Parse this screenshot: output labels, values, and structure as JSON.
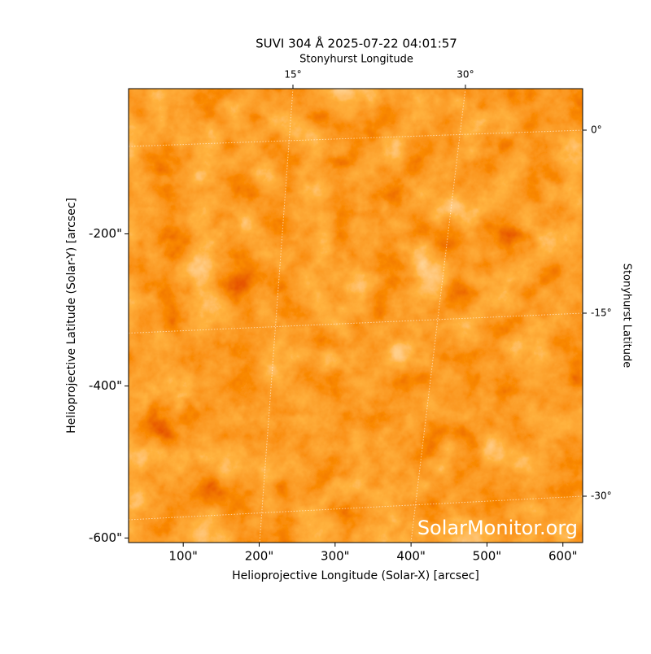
{
  "chart_data": {
    "type": "image",
    "title": "SUVI 304 Å 2025-07-22 04:01:57",
    "xlabel": "Helioprojective Longitude (Solar-X) [arcsec]",
    "ylabel": "Helioprojective Latitude (Solar-Y) [arcsec]",
    "top_label": "Stonyhurst Longitude",
    "right_label": "Stonyhurst Latitude",
    "watermark": "SolarMonitor.org",
    "xlim": [
      28,
      626
    ],
    "ylim": [
      -606,
      -9
    ],
    "xticks": [
      {
        "value": 100,
        "label": "100\""
      },
      {
        "value": 200,
        "label": "200\""
      },
      {
        "value": 300,
        "label": "300\""
      },
      {
        "value": 400,
        "label": "400\""
      },
      {
        "value": 500,
        "label": "500\""
      },
      {
        "value": 600,
        "label": "600\""
      }
    ],
    "yticks": [
      {
        "value": -200,
        "label": "-200\""
      },
      {
        "value": -400,
        "label": "-400\""
      },
      {
        "value": -600,
        "label": "-600\""
      }
    ],
    "lon_ticks": [
      {
        "value": 15,
        "label": "15°"
      },
      {
        "value": 30,
        "label": "30°"
      }
    ],
    "lat_ticks": [
      {
        "value": 0,
        "label": "0°"
      },
      {
        "value": -15,
        "label": "-15°"
      },
      {
        "value": -30,
        "label": "-30°"
      }
    ]
  }
}
